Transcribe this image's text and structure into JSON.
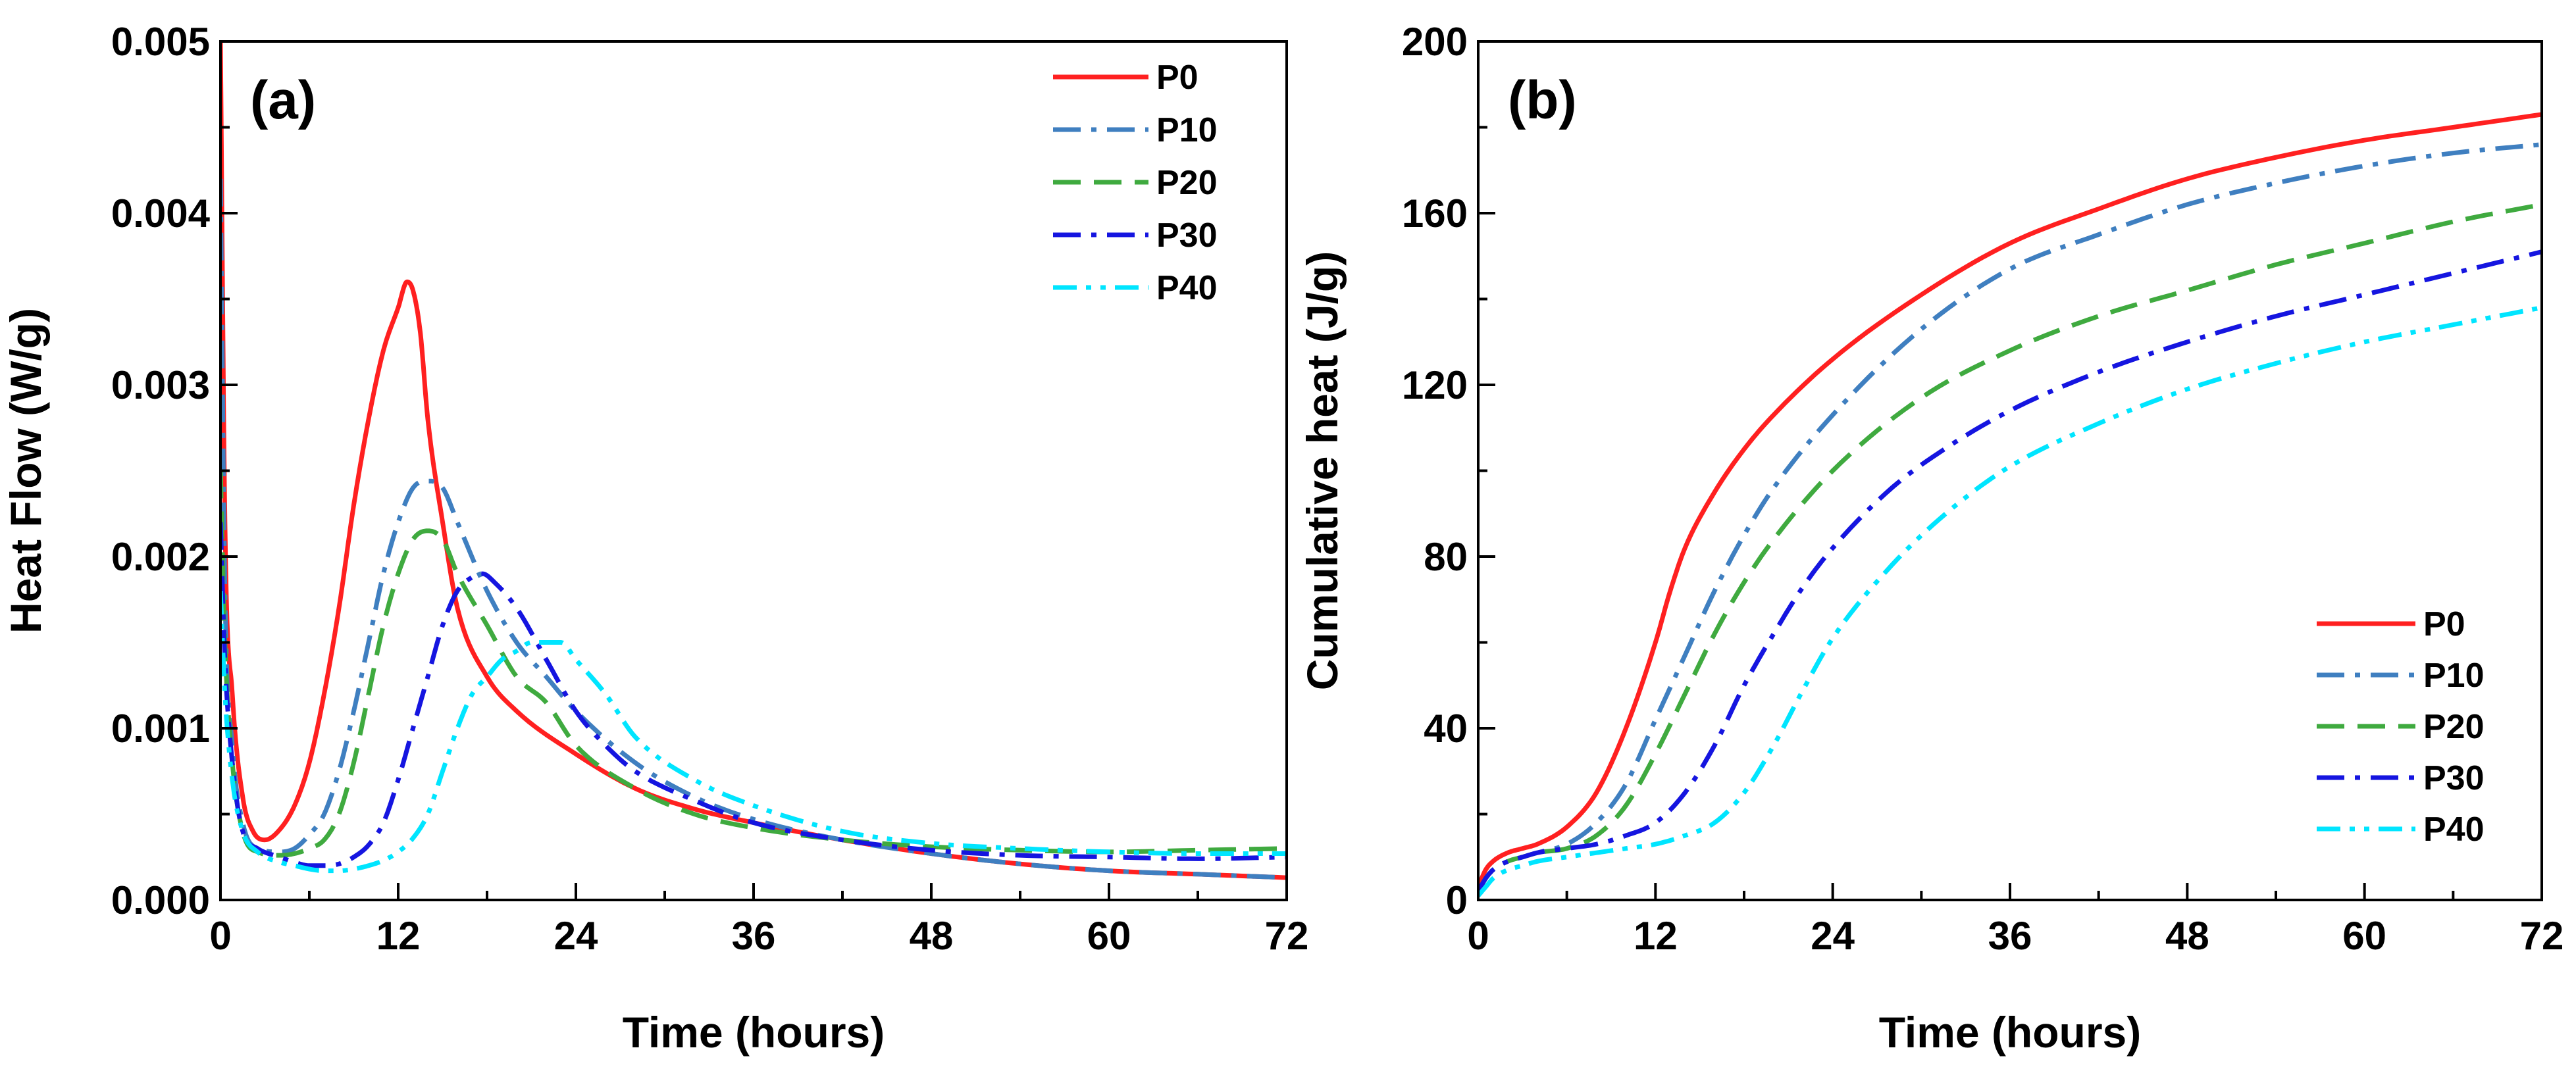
{
  "chart_data": [
    {
      "type": "line",
      "panel_label": "(a)",
      "title": "",
      "xlabel": "Time (hours)",
      "ylabel": "Heat Flow (W/g)",
      "xlim": [
        0,
        72
      ],
      "ylim": [
        0,
        0.005
      ],
      "x_ticks": [
        0,
        12,
        24,
        36,
        48,
        60,
        72
      ],
      "x_tick_labels": [
        "0",
        "12",
        "24",
        "36",
        "48",
        "60",
        "72"
      ],
      "y_ticks": [
        0,
        0.001,
        0.002,
        0.003,
        0.004,
        0.005
      ],
      "y_tick_labels": [
        "0.000",
        "0.001",
        "0.002",
        "0.003",
        "0.004",
        "0.005"
      ],
      "grid": false,
      "legend_position": "top-right",
      "series": [
        {
          "name": "P0",
          "color": "#ff2020",
          "dash": "solid",
          "x": [
            0,
            0.3,
            0.8,
            1.5,
            2.2,
            3,
            4,
            5,
            6,
            7,
            8,
            9,
            10,
            11,
            12,
            12.6,
            13,
            13.5,
            14,
            15,
            16,
            18,
            20,
            24,
            28,
            32,
            36,
            42,
            48,
            54,
            60,
            66,
            72
          ],
          "y": [
            0.005,
            0.0022,
            0.0012,
            0.0006,
            0.0004,
            0.00035,
            0.00041,
            0.00055,
            0.0008,
            0.0012,
            0.0017,
            0.0023,
            0.0028,
            0.0032,
            0.00345,
            0.0036,
            0.00355,
            0.0033,
            0.0028,
            0.0022,
            0.0017,
            0.0013,
            0.0011,
            0.00085,
            0.00065,
            0.00053,
            0.00045,
            0.00035,
            0.00027,
            0.00021,
            0.00017,
            0.00015,
            0.00013
          ]
        },
        {
          "name": "P10",
          "color": "#3f7fc0",
          "dash": "dashdot",
          "x": [
            0,
            0.3,
            0.8,
            1.5,
            2.5,
            4,
            5,
            6,
            7,
            8,
            9,
            10,
            11,
            12,
            13,
            14,
            15,
            16,
            18,
            20,
            22,
            24,
            28,
            32,
            36,
            42,
            48,
            54,
            60,
            66,
            72
          ],
          "y": [
            0.0042,
            0.0018,
            0.0009,
            0.00045,
            0.0003,
            0.00028,
            0.0003,
            0.00038,
            0.0005,
            0.00075,
            0.0011,
            0.0015,
            0.0019,
            0.0022,
            0.0024,
            0.00244,
            0.0024,
            0.0022,
            0.0018,
            0.0015,
            0.0013,
            0.0011,
            0.0008,
            0.0006,
            0.00047,
            0.00035,
            0.00027,
            0.00021,
            0.00017,
            0.00015,
            0.00013
          ]
        },
        {
          "name": "P20",
          "color": "#3faa3f",
          "dash": "dash",
          "x": [
            0,
            0.3,
            0.8,
            1.5,
            2.5,
            4,
            5,
            6,
            7,
            8,
            9,
            10,
            11,
            12,
            13,
            14,
            15,
            16,
            18,
            20,
            22,
            24,
            28,
            32,
            36,
            42,
            48,
            54,
            60,
            66,
            72
          ],
          "y": [
            0.0025,
            0.0015,
            0.0008,
            0.0004,
            0.00028,
            0.00026,
            0.00027,
            0.0003,
            0.00035,
            0.0005,
            0.0008,
            0.0012,
            0.0016,
            0.0019,
            0.0021,
            0.00215,
            0.0021,
            0.0019,
            0.0016,
            0.0013,
            0.00115,
            0.0009,
            0.00065,
            0.0005,
            0.00042,
            0.00035,
            0.00031,
            0.00029,
            0.00028,
            0.00029,
            0.0003
          ]
        },
        {
          "name": "P30",
          "color": "#1515e0",
          "dash": "dashdot",
          "x": [
            0,
            0.3,
            0.8,
            1.5,
            2.5,
            4,
            5,
            6,
            7,
            8,
            9,
            10,
            11,
            12,
            13,
            14,
            15,
            16,
            17,
            17.7,
            18.5,
            20,
            22,
            24,
            26,
            28,
            32,
            36,
            42,
            48,
            54,
            60,
            66,
            72
          ],
          "y": [
            0.0022,
            0.0014,
            0.0008,
            0.0004,
            0.0003,
            0.00025,
            0.00022,
            0.0002,
            0.0002,
            0.00021,
            0.00025,
            0.00032,
            0.00045,
            0.0007,
            0.001,
            0.0013,
            0.0016,
            0.0018,
            0.00188,
            0.0019,
            0.00185,
            0.0017,
            0.0014,
            0.0011,
            0.0009,
            0.00075,
            0.00058,
            0.00045,
            0.00035,
            0.00029,
            0.00026,
            0.00025,
            0.00024,
            0.00025
          ]
        },
        {
          "name": "P40",
          "color": "#00e5ff",
          "dash": "dashdotdot",
          "x": [
            0,
            0.3,
            0.8,
            1.5,
            2.5,
            4,
            5,
            6,
            7,
            8,
            9,
            10,
            11,
            12,
            13,
            14,
            15,
            16,
            17,
            18,
            19,
            20,
            21,
            22,
            23,
            24,
            26,
            28,
            32,
            36,
            42,
            48,
            54,
            60,
            66,
            72
          ],
          "y": [
            0.0018,
            0.0012,
            0.0007,
            0.0004,
            0.00028,
            0.00022,
            0.0002,
            0.00018,
            0.00017,
            0.00017,
            0.00018,
            0.0002,
            0.00023,
            0.00028,
            0.00036,
            0.0005,
            0.00075,
            0.001,
            0.0012,
            0.0013,
            0.0014,
            0.00145,
            0.0015,
            0.0015,
            0.0015,
            0.0014,
            0.0012,
            0.00095,
            0.0007,
            0.00055,
            0.0004,
            0.00033,
            0.0003,
            0.00028,
            0.00027,
            0.00027
          ]
        }
      ]
    },
    {
      "type": "line",
      "panel_label": "(b)",
      "title": "",
      "xlabel": "Time (hours)",
      "ylabel": "Cumulative heat (J/g)",
      "xlim": [
        0,
        72
      ],
      "ylim": [
        0,
        200
      ],
      "x_ticks": [
        0,
        12,
        24,
        36,
        48,
        60,
        72
      ],
      "x_tick_labels": [
        "0",
        "12",
        "24",
        "36",
        "48",
        "60",
        "72"
      ],
      "y_ticks": [
        0,
        40,
        80,
        120,
        160,
        200
      ],
      "y_tick_labels": [
        "0",
        "40",
        "80",
        "120",
        "160",
        "200"
      ],
      "grid": false,
      "legend_position": "bottom-right",
      "series": [
        {
          "name": "P0",
          "color": "#ff2020",
          "dash": "solid",
          "x": [
            0,
            0.5,
            1,
            2,
            3,
            4,
            6,
            8,
            10,
            12,
            13,
            14,
            16,
            18,
            20,
            24,
            30,
            36,
            42,
            48,
            54,
            60,
            66,
            72
          ],
          "y": [
            3,
            7,
            9,
            11,
            12,
            13,
            17,
            25,
            40,
            60,
            72,
            82,
            95,
            105,
            113,
            126,
            141,
            153,
            161,
            168,
            173,
            177,
            180,
            183
          ]
        },
        {
          "name": "P10",
          "color": "#3f7fc0",
          "dash": "dashdot",
          "x": [
            0,
            0.5,
            1,
            2,
            3,
            4,
            6,
            8,
            10,
            12,
            14,
            16,
            18,
            20,
            24,
            30,
            36,
            42,
            48,
            54,
            60,
            66,
            72
          ],
          "y": [
            2,
            5,
            7,
            9,
            10,
            11,
            13,
            18,
            27,
            42,
            57,
            72,
            85,
            96,
            113,
            133,
            147,
            155,
            162,
            167,
            171,
            174,
            176
          ]
        },
        {
          "name": "P20",
          "color": "#3faa3f",
          "dash": "dash",
          "x": [
            0,
            0.5,
            1,
            2,
            3,
            4,
            6,
            8,
            10,
            12,
            14,
            16,
            18,
            20,
            24,
            30,
            36,
            42,
            48,
            54,
            60,
            66,
            72
          ],
          "y": [
            2,
            5,
            7,
            9,
            10,
            11,
            12,
            15,
            22,
            34,
            48,
            62,
            74,
            84,
            100,
            117,
            128,
            136,
            142,
            148,
            153,
            158,
            162
          ]
        },
        {
          "name": "P30",
          "color": "#1515e0",
          "dash": "dashdot",
          "x": [
            0,
            0.5,
            1,
            2,
            3,
            4,
            6,
            8,
            10,
            12,
            14,
            16,
            18,
            20,
            22,
            24,
            28,
            32,
            36,
            42,
            48,
            54,
            60,
            66,
            72
          ],
          "y": [
            2,
            5,
            7,
            9,
            10,
            11,
            12,
            13,
            15,
            18,
            25,
            36,
            50,
            62,
            73,
            82,
            96,
            106,
            114,
            123,
            130,
            136,
            141,
            146,
            151
          ]
        },
        {
          "name": "P40",
          "color": "#00e5ff",
          "dash": "dashdotdot",
          "x": [
            0,
            0.5,
            1,
            2,
            3,
            4,
            6,
            8,
            10,
            12,
            14,
            16,
            18,
            20,
            22,
            24,
            28,
            32,
            36,
            42,
            48,
            54,
            60,
            66,
            72
          ],
          "y": [
            1,
            3,
            5,
            7,
            8,
            9,
            10,
            11,
            12,
            13,
            15,
            18,
            25,
            36,
            49,
            61,
            78,
            91,
            101,
            111,
            119,
            125,
            130,
            134,
            138
          ]
        }
      ]
    }
  ]
}
